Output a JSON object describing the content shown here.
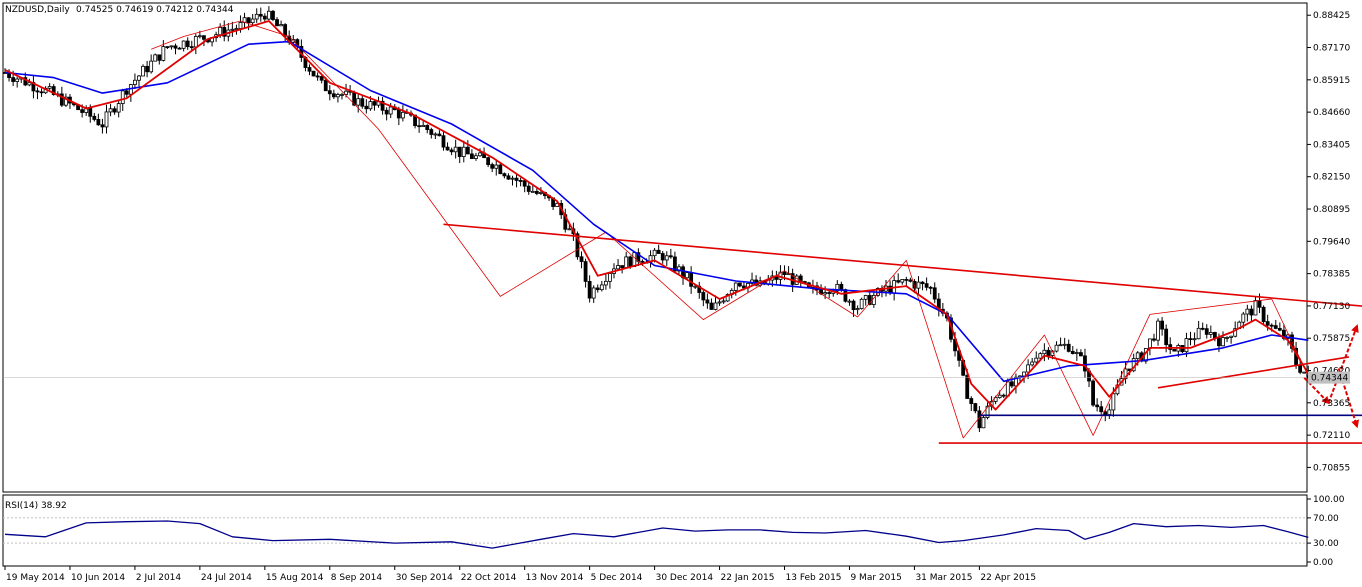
{
  "header": {
    "symbol": "NZDUSD,Daily",
    "ohlc": "0.74525 0.74619 0.74212 0.74344"
  },
  "rsi_panel": {
    "label": "RSI(14) 38.92",
    "ticks": [
      "100.00",
      "70.00",
      "30.00",
      "0.00"
    ],
    "tick_values": [
      100,
      70,
      30,
      0
    ]
  },
  "colors": {
    "background": "#ffffff",
    "bull_candle": "#ffffff",
    "bear_candle": "#000000",
    "fast_ma": "#e00000",
    "slow_ma": "#0000ee",
    "trendline": "#e00000",
    "support_navy": "#000080",
    "rsi_line": "#00008b",
    "zigzag": "#e00000",
    "zigzag_alt": "#00aaff"
  },
  "chart_data": {
    "type": "candlestick",
    "title": "NZDUSD,Daily",
    "price_ticks": [
      0.88425,
      0.8717,
      0.85915,
      0.8466,
      0.83405,
      0.8215,
      0.80895,
      0.7964,
      0.78385,
      0.7713,
      0.75875,
      0.7462,
      0.73365,
      0.7211,
      0.70855
    ],
    "price_tick_labels": [
      "0.88425",
      "0.87170",
      "0.85915",
      "0.84660",
      "0.83405",
      "0.82150",
      "0.80895",
      "0.79640",
      "0.78385",
      "0.77130",
      "0.75875",
      "0.74620",
      "0.73365",
      "0.72110",
      "0.70855"
    ],
    "ylim": [
      0.699,
      0.889
    ],
    "current_price": 0.74344,
    "current_price_label": "0.74344",
    "date_labels": [
      "19 May 2014",
      "10 Jun 2014",
      "2 Jul 2014",
      "24 Jul 2014",
      "15 Aug 2014",
      "8 Sep 2014",
      "30 Sep 2014",
      "22 Oct 2014",
      "13 Nov 2014",
      "5 Dec 2014",
      "30 Dec 2014",
      "22 Jan 2015",
      "13 Feb 2015",
      "9 Mar 2015",
      "31 Mar 2015",
      "22 Apr 2015"
    ],
    "bars_total": 252,
    "bars_between_labels": 16,
    "close_path": [
      [
        0,
        0.862
      ],
      [
        10,
        0.855
      ],
      [
        20,
        0.846
      ],
      [
        24,
        0.842
      ],
      [
        30,
        0.856
      ],
      [
        40,
        0.872
      ],
      [
        50,
        0.876
      ],
      [
        58,
        0.88
      ],
      [
        64,
        0.885
      ],
      [
        70,
        0.875
      ],
      [
        78,
        0.857
      ],
      [
        88,
        0.85
      ],
      [
        96,
        0.847
      ],
      [
        104,
        0.84
      ],
      [
        112,
        0.831
      ],
      [
        120,
        0.827
      ],
      [
        128,
        0.818
      ],
      [
        136,
        0.81
      ],
      [
        140,
        0.797
      ],
      [
        144,
        0.776
      ],
      [
        150,
        0.787
      ],
      [
        156,
        0.79
      ],
      [
        162,
        0.791
      ],
      [
        168,
        0.782
      ],
      [
        174,
        0.769
      ],
      [
        180,
        0.781
      ],
      [
        186,
        0.779
      ],
      [
        192,
        0.784
      ],
      [
        198,
        0.777
      ],
      [
        204,
        0.779
      ],
      [
        210,
        0.771
      ],
      [
        216,
        0.777
      ],
      [
        222,
        0.781
      ],
      [
        228,
        0.778
      ],
      [
        232,
        0.766
      ],
      [
        236,
        0.742
      ],
      [
        240,
        0.725
      ],
      [
        244,
        0.737
      ],
      [
        250,
        0.742
      ],
      [
        254,
        0.753
      ],
      [
        258,
        0.755
      ],
      [
        262,
        0.756
      ],
      [
        266,
        0.748
      ],
      [
        268,
        0.733
      ],
      [
        272,
        0.731
      ],
      [
        276,
        0.747
      ],
      [
        280,
        0.752
      ],
      [
        284,
        0.763
      ],
      [
        288,
        0.752
      ],
      [
        292,
        0.759
      ],
      [
        296,
        0.762
      ],
      [
        300,
        0.757
      ],
      [
        304,
        0.766
      ],
      [
        308,
        0.771
      ],
      [
        312,
        0.763
      ],
      [
        316,
        0.758
      ],
      [
        318,
        0.749
      ],
      [
        321,
        0.744
      ]
    ],
    "series": [
      {
        "name": "",
        "type": "ma_fast",
        "values": [
          [
            0,
            0.863
          ],
          [
            20,
            0.848
          ],
          [
            30,
            0.852
          ],
          [
            50,
            0.875
          ],
          [
            65,
            0.882
          ],
          [
            80,
            0.858
          ],
          [
            100,
            0.846
          ],
          [
            120,
            0.829
          ],
          [
            136,
            0.812
          ],
          [
            146,
            0.783
          ],
          [
            160,
            0.789
          ],
          [
            176,
            0.774
          ],
          [
            190,
            0.783
          ],
          [
            206,
            0.776
          ],
          [
            222,
            0.779
          ],
          [
            232,
            0.768
          ],
          [
            238,
            0.741
          ],
          [
            244,
            0.731
          ],
          [
            256,
            0.752
          ],
          [
            266,
            0.748
          ],
          [
            272,
            0.736
          ],
          [
            282,
            0.755
          ],
          [
            292,
            0.755
          ],
          [
            302,
            0.761
          ],
          [
            308,
            0.766
          ],
          [
            316,
            0.758
          ],
          [
            321,
            0.745
          ]
        ]
      },
      {
        "name": "",
        "type": "ma_slow",
        "values": [
          [
            0,
            0.862
          ],
          [
            12,
            0.86
          ],
          [
            24,
            0.854
          ],
          [
            40,
            0.858
          ],
          [
            60,
            0.873
          ],
          [
            70,
            0.874
          ],
          [
            90,
            0.855
          ],
          [
            110,
            0.842
          ],
          [
            130,
            0.824
          ],
          [
            145,
            0.803
          ],
          [
            160,
            0.787
          ],
          [
            180,
            0.781
          ],
          [
            200,
            0.778
          ],
          [
            222,
            0.776
          ],
          [
            232,
            0.768
          ],
          [
            246,
            0.742
          ],
          [
            262,
            0.748
          ],
          [
            280,
            0.75
          ],
          [
            300,
            0.755
          ],
          [
            312,
            0.76
          ],
          [
            321,
            0.758
          ]
        ]
      },
      {
        "name": "",
        "type": "rsi",
        "values": [
          [
            0,
            44
          ],
          [
            10,
            40
          ],
          [
            20,
            62
          ],
          [
            30,
            64
          ],
          [
            40,
            65
          ],
          [
            48,
            61
          ],
          [
            56,
            40
          ],
          [
            66,
            34
          ],
          [
            80,
            36
          ],
          [
            96,
            30
          ],
          [
            110,
            32
          ],
          [
            120,
            22
          ],
          [
            132,
            36
          ],
          [
            140,
            45
          ],
          [
            150,
            40
          ],
          [
            162,
            54
          ],
          [
            170,
            49
          ],
          [
            178,
            51
          ],
          [
            186,
            51
          ],
          [
            194,
            47
          ],
          [
            202,
            46
          ],
          [
            212,
            50
          ],
          [
            222,
            41
          ],
          [
            230,
            31
          ],
          [
            236,
            34
          ],
          [
            246,
            43
          ],
          [
            254,
            53
          ],
          [
            262,
            50
          ],
          [
            266,
            36
          ],
          [
            272,
            47
          ],
          [
            278,
            61
          ],
          [
            286,
            56
          ],
          [
            294,
            58
          ],
          [
            302,
            55
          ],
          [
            310,
            58
          ],
          [
            316,
            48
          ],
          [
            321,
            39
          ]
        ]
      }
    ],
    "annotations": {
      "resistance_line": [
        [
          108,
          0.803
        ],
        [
          336,
          0.771
        ]
      ],
      "rising_support": [
        [
          284,
          0.7395
        ],
        [
          331,
          0.7515
        ]
      ],
      "support_navy": [
        [
          240,
          0.7288
        ],
        [
          338,
          0.7288
        ]
      ],
      "support_red": [
        [
          230,
          0.718
        ],
        [
          362,
          0.718
        ]
      ],
      "arrow_up_tip": [
        333,
        0.7635
      ],
      "arrow_down_tip_1": [
        326,
        0.7336
      ],
      "arrow_down_tip_2": [
        333,
        0.7245
      ],
      "zigzag": [
        [
          36,
          0.871
        ],
        [
          44,
          0.876
        ],
        [
          58,
          0.882
        ],
        [
          70,
          0.876
        ],
        [
          92,
          0.84
        ],
        [
          122,
          0.775
        ],
        [
          148,
          0.8
        ],
        [
          172,
          0.766
        ],
        [
          192,
          0.785
        ],
        [
          210,
          0.767
        ],
        [
          222,
          0.789
        ],
        [
          236,
          0.72
        ],
        [
          256,
          0.76
        ],
        [
          268,
          0.721
        ],
        [
          282,
          0.768
        ],
        [
          312,
          0.774
        ],
        [
          321,
          0.744
        ]
      ]
    }
  }
}
